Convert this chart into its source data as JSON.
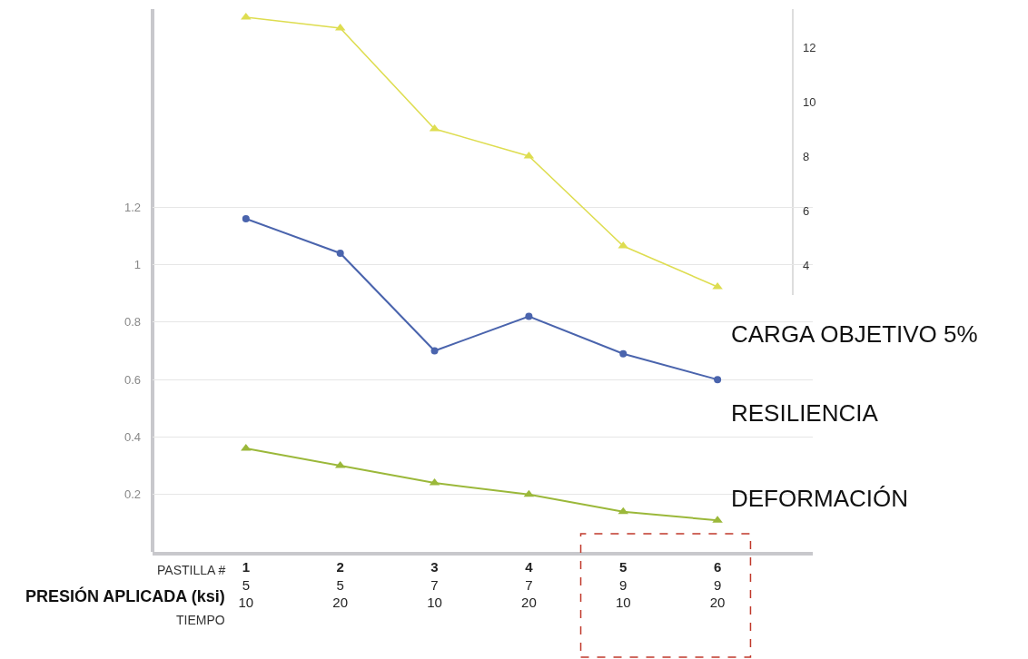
{
  "chart_data": {
    "type": "line",
    "categories": [
      "1\n5\n10",
      "2\n5\n20",
      "3\n7\n10",
      "4\n7\n20",
      "5\n9\n10",
      "6\n9\n20"
    ],
    "series": [
      {
        "name": "CARGA OBJETIVO 5%",
        "color": "#dedd50",
        "axis": "y2",
        "marker": "triangle",
        "values": [
          13.1,
          12.7,
          9.0,
          8.0,
          4.7,
          3.2
        ]
      },
      {
        "name": "RESILIENCIA",
        "color": "#4a64ad",
        "marker": "circle",
        "values": [
          1.16,
          1.04,
          0.7,
          0.82,
          0.69,
          0.6
        ]
      },
      {
        "name": "DEFORMACIÓN",
        "color": "#9bb83a",
        "marker": "triangle",
        "values": [
          0.36,
          0.3,
          0.24,
          0.2,
          0.14,
          0.11
        ]
      }
    ],
    "ylim": [
      0,
      1.89
    ],
    "yticks": [
      0.2,
      0.4,
      0.6,
      0.8,
      1,
      1.2
    ],
    "y2lim": [
      2.9,
      13.4
    ],
    "y2ticks": [
      4,
      6,
      8,
      10,
      12
    ],
    "grid": "y",
    "legend": false,
    "annotations": [
      "PASTILLA #",
      "PRESIÓN APLICADA (ksi)",
      "TIEMPO"
    ]
  }
}
